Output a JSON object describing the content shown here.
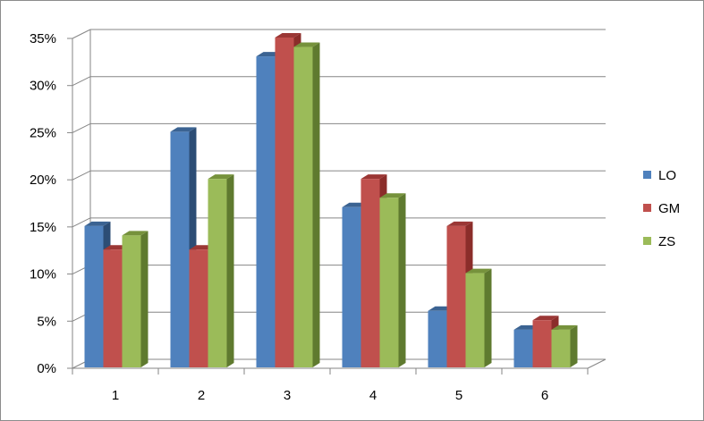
{
  "chart_data": {
    "type": "bar",
    "title": "",
    "xlabel": "",
    "ylabel": "",
    "categories": [
      "1",
      "2",
      "3",
      "4",
      "5",
      "6"
    ],
    "series": [
      {
        "name": "LO",
        "values": [
          15,
          25,
          33,
          17,
          6,
          4
        ],
        "color": "#4f81bd",
        "top_color": "#3b6392",
        "side_color": "#2c4d75"
      },
      {
        "name": "GM",
        "values": [
          12.5,
          12.5,
          35,
          20,
          15,
          5
        ],
        "color": "#c0504d",
        "top_color": "#9b3735",
        "side_color": "#8b2d2a"
      },
      {
        "name": "ZS",
        "values": [
          14,
          20,
          34,
          18,
          10,
          4
        ],
        "color": "#9bbb59",
        "top_color": "#76923c",
        "side_color": "#5f7a2f"
      }
    ],
    "ylim": [
      0,
      35
    ],
    "y_ticks": [
      "0%",
      "5%",
      "10%",
      "15%",
      "20%",
      "25%",
      "30%",
      "35%"
    ],
    "y_tick_values": [
      0,
      5,
      10,
      15,
      20,
      25,
      30,
      35
    ],
    "grid": true,
    "legend_position": "right",
    "three_d": true
  }
}
